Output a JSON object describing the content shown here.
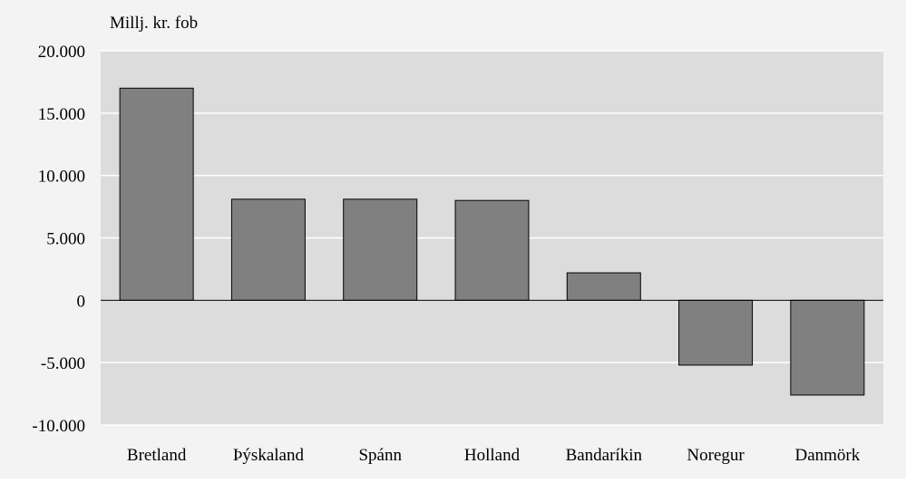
{
  "chart_data": {
    "type": "bar",
    "title": "",
    "ylabel": "Millj. kr. fob",
    "xlabel": "",
    "categories": [
      "Bretland",
      "Þýskaland",
      "Spánn",
      "Holland",
      "Bandaríkin",
      "Noregur",
      "Danmörk"
    ],
    "values": [
      17000,
      8100,
      8100,
      8000,
      2200,
      -5200,
      -7600
    ],
    "ylim": [
      -10000,
      20000
    ],
    "yticks": [
      20000,
      15000,
      10000,
      5000,
      0,
      -5000,
      -10000
    ],
    "ytick_labels": [
      "20.000",
      "15.000",
      "10.000",
      "5.000",
      "0",
      "-5.000",
      "-10.000"
    ],
    "grid": true,
    "legend": "none"
  },
  "colors": {
    "page_background": "#f3f3f3",
    "plot_background": "#dcdcdc",
    "bar_fill": "#808080",
    "bar_stroke": "#000000",
    "gridline": "#ffffff",
    "zero_line": "#000000",
    "text": "#000000"
  }
}
